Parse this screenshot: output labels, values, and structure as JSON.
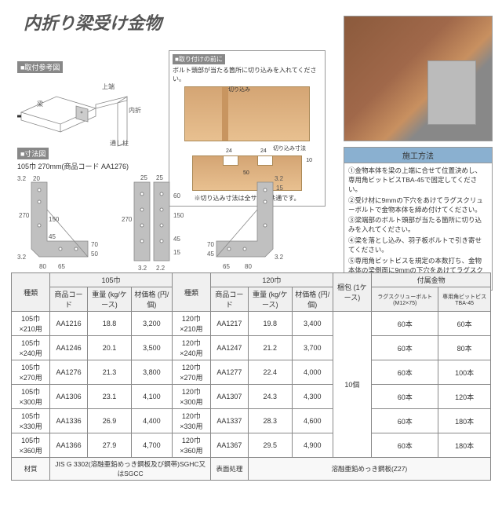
{
  "title": "内折り梁受け金物",
  "labels": {
    "refDiagram": "■取付参考図",
    "dimDiagram": "■寸法図",
    "dimSub": "105巾 270mm(商品コード AA1276)",
    "prepTitle": "■取り付けの前に",
    "prepText": "ボルト頭部が当たる箇所に切り込みを入れてください。",
    "notchLabel1": "切り込み",
    "notchLabel2": "切り込み寸法",
    "notchNote": "※切り込み寸法は全サイズ共通です。",
    "instHeader": "施工方法",
    "inst": [
      "①金物本体を梁の上端に合せて位置決めし、専用角ビットビスTBA-45で固定してください。",
      "②受け材に9mmの下穴をあけてラグスクリューボルトで金物本体を締め付けてください。",
      "③梁端部のボルト頭部が当たる箇所に切り込みを入れてください。",
      "④梁を落とし込み、羽子板ボルトで引き寄せてください。",
      "⑤専用角ビットビスを規定の本数打ち、金物本体の梁側面に9mmの下穴をあけてラグスクリューボルトで締め付けてください。"
    ]
  },
  "diag": {
    "labels": {
      "beam": "梁",
      "post": "通し柱",
      "top": "上端",
      "side": "内折"
    }
  },
  "notch": {
    "d1": "24",
    "d2": "24",
    "gap": "50",
    "depth": "10"
  },
  "table": {
    "headers": {
      "type": "種類",
      "group105": "105巾",
      "group120": "120巾",
      "code": "商品コード",
      "weight": "重量\n(kg/ケース)",
      "price": "材価格\n(円/個)",
      "pack": "梱包\n(1ケース)",
      "accessories": "付属金物",
      "lag": "ラグスクリューボルト\n(M12×75)",
      "screw": "専用角ビットビス\nTBA-45"
    },
    "rows": [
      {
        "t105": "105巾×210用",
        "c105": "AA1216",
        "w105": "18.8",
        "p105": "3,200",
        "t120": "120巾×210用",
        "c120": "AA1217",
        "w120": "19.8",
        "p120": "3,400",
        "lag": "60本",
        "scr": "60本"
      },
      {
        "t105": "105巾×240用",
        "c105": "AA1246",
        "w105": "20.1",
        "p105": "3,500",
        "t120": "120巾×240用",
        "c120": "AA1247",
        "w120": "21.2",
        "p120": "3,700",
        "lag": "60本",
        "scr": "80本"
      },
      {
        "t105": "105巾×270用",
        "c105": "AA1276",
        "w105": "21.3",
        "p105": "3,800",
        "t120": "120巾×270用",
        "c120": "AA1277",
        "w120": "22.4",
        "p120": "4,000",
        "lag": "60本",
        "scr": "100本"
      },
      {
        "t105": "105巾×300用",
        "c105": "AA1306",
        "w105": "23.1",
        "p105": "4,100",
        "t120": "120巾×300用",
        "c120": "AA1307",
        "w120": "24.3",
        "p120": "4,300",
        "lag": "60本",
        "scr": "120本"
      },
      {
        "t105": "105巾×330用",
        "c105": "AA1336",
        "w105": "26.9",
        "p105": "4,400",
        "t120": "120巾×330用",
        "c120": "AA1337",
        "w120": "28.3",
        "p120": "4,600",
        "lag": "60本",
        "scr": "180本"
      },
      {
        "t105": "105巾×360用",
        "c105": "AA1366",
        "w105": "27.9",
        "p105": "4,700",
        "t120": "120巾×360用",
        "c120": "AA1367",
        "w120": "29.5",
        "p120": "4,900",
        "lag": "60本",
        "scr": "180本"
      }
    ],
    "pack": "10個",
    "material": {
      "label": "材質",
      "value": "JIS G 3302(溶融亜鉛めっき鋼板及び鋼帯)SGHC又はSGCC",
      "surfaceLabel": "表面処理",
      "surfaceValue": "溶融亜鉛めっき鋼板(Z27)"
    }
  },
  "style": {
    "accent": "#8ab0d0",
    "gridColor": "#888",
    "bracketFill": "#c0c0c0",
    "bracketStroke": "#888"
  }
}
